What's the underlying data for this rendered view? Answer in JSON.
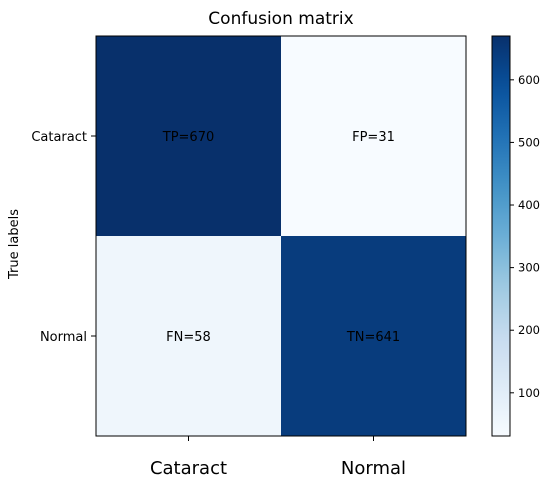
{
  "chart_data": {
    "type": "heatmap",
    "title": "Confusion matrix",
    "ylabel": "True labels",
    "xlabel": "",
    "x_categories": [
      "Cataract",
      "Normal"
    ],
    "y_categories": [
      "Cataract",
      "Normal"
    ],
    "matrix": [
      [
        670,
        31
      ],
      [
        58,
        641
      ]
    ],
    "cell_labels": [
      [
        "TP=670",
        "FP=31"
      ],
      [
        "FN=58",
        "TN=641"
      ]
    ],
    "colorscale": "Blues",
    "colorbar": {
      "min": 31,
      "max": 670,
      "ticks": [
        100,
        200,
        300,
        400,
        500,
        600
      ]
    }
  }
}
